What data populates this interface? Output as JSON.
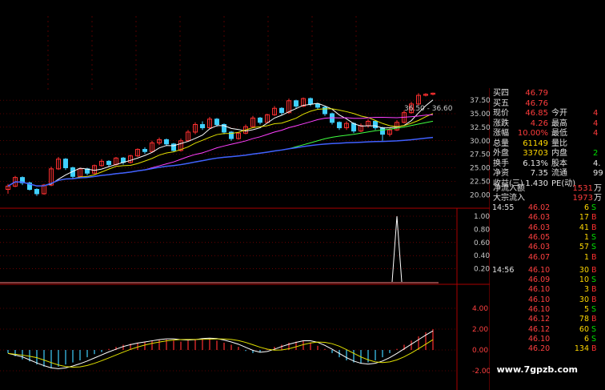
{
  "main_axis_ticks": [
    "37.50",
    "35.00",
    "32.50",
    "30.00",
    "27.50",
    "25.00",
    "22.50",
    "20.00"
  ],
  "sub1_axis_ticks": [
    "1.00",
    "0.80",
    "0.60",
    "0.40",
    "0.20"
  ],
  "sub2_axis_ticks": [
    "4.00",
    "2.00",
    "0.00",
    "-2.00"
  ],
  "price_annotation": "36.50 - 36.60",
  "colors": {
    "up": "#ff3030",
    "down": "#40d0ff",
    "ma5": "#ffffff",
    "ma10": "#e0e000",
    "ma20": "#ff40ff",
    "ma60": "#40ff40",
    "ma120": "#4060ff",
    "grid": "#aa0000"
  },
  "chart_data": {
    "type": "candlestick",
    "y_range_main": [
      19,
      39
    ],
    "candles": [
      [
        21.0,
        21.6,
        20.2,
        22.0
      ],
      [
        21.6,
        23.2,
        21.4,
        23.5
      ],
      [
        23.2,
        22.2,
        21.8,
        23.4
      ],
      [
        22.2,
        21.0,
        20.8,
        22.4
      ],
      [
        21.0,
        20.2,
        19.8,
        21.2
      ],
      [
        20.2,
        21.8,
        20.0,
        22.0
      ],
      [
        21.8,
        24.8,
        21.6,
        25.2
      ],
      [
        24.8,
        26.6,
        24.6,
        27.0
      ],
      [
        26.6,
        25.0,
        24.6,
        26.8
      ],
      [
        25.0,
        23.4,
        23.0,
        25.2
      ],
      [
        23.4,
        24.8,
        23.2,
        25.0
      ],
      [
        24.8,
        24.0,
        23.6,
        25.0
      ],
      [
        24.0,
        25.4,
        23.8,
        25.6
      ],
      [
        25.4,
        26.2,
        25.2,
        26.6
      ],
      [
        26.2,
        25.6,
        25.2,
        26.4
      ],
      [
        25.6,
        26.8,
        25.4,
        27.0
      ],
      [
        26.8,
        26.0,
        25.6,
        27.0
      ],
      [
        26.0,
        27.2,
        25.8,
        27.4
      ],
      [
        27.2,
        28.4,
        27.0,
        28.6
      ],
      [
        28.4,
        28.0,
        27.6,
        28.8
      ],
      [
        28.0,
        29.6,
        27.8,
        30.0
      ],
      [
        29.6,
        30.2,
        29.2,
        30.6
      ],
      [
        30.2,
        29.4,
        29.0,
        30.4
      ],
      [
        29.4,
        28.2,
        28.0,
        29.6
      ],
      [
        28.2,
        30.0,
        28.0,
        30.4
      ],
      [
        30.0,
        31.6,
        29.8,
        32.0
      ],
      [
        31.6,
        33.0,
        31.2,
        33.4
      ],
      [
        33.0,
        32.4,
        32.0,
        33.6
      ],
      [
        32.4,
        34.0,
        32.2,
        34.4
      ],
      [
        34.0,
        33.0,
        32.6,
        34.2
      ],
      [
        33.0,
        31.6,
        31.2,
        33.2
      ],
      [
        31.6,
        30.4,
        30.0,
        31.8
      ],
      [
        30.4,
        31.4,
        30.2,
        31.6
      ],
      [
        31.4,
        32.6,
        31.2,
        33.0
      ],
      [
        32.6,
        34.2,
        32.4,
        34.6
      ],
      [
        34.2,
        33.4,
        33.0,
        34.4
      ],
      [
        33.4,
        34.8,
        33.2,
        35.0
      ],
      [
        34.8,
        36.0,
        34.6,
        36.4
      ],
      [
        36.0,
        35.2,
        34.8,
        36.2
      ],
      [
        35.2,
        37.4,
        35.0,
        37.8
      ],
      [
        37.4,
        36.4,
        36.0,
        37.6
      ],
      [
        36.4,
        37.8,
        36.2,
        38.0
      ],
      [
        37.8,
        36.8,
        36.4,
        38.0
      ],
      [
        36.8,
        36.2,
        35.8,
        37.0
      ],
      [
        36.2,
        35.0,
        34.6,
        36.4
      ],
      [
        35.0,
        33.4,
        33.0,
        35.2
      ],
      [
        33.4,
        32.4,
        32.0,
        33.6
      ],
      [
        32.4,
        33.2,
        32.0,
        33.6
      ],
      [
        33.2,
        31.8,
        31.4,
        33.4
      ],
      [
        31.8,
        32.8,
        31.6,
        33.2
      ],
      [
        32.8,
        33.6,
        32.4,
        34.0
      ],
      [
        33.6,
        32.4,
        32.0,
        33.8
      ],
      [
        32.4,
        31.2,
        30.0,
        32.6
      ],
      [
        31.2,
        32.0,
        30.8,
        32.4
      ],
      [
        32.0,
        33.4,
        31.8,
        33.8
      ],
      [
        33.4,
        35.2,
        33.2,
        35.6
      ],
      [
        35.2,
        36.8,
        35.0,
        37.2
      ],
      [
        36.8,
        38.4,
        36.6,
        38.8
      ],
      [
        38.4,
        38.6,
        38.2,
        38.8
      ],
      [
        38.6,
        38.8,
        38.4,
        38.9
      ]
    ],
    "volume_spike": {
      "index": 54,
      "value": 1.0
    },
    "macd": [
      -0.3,
      -0.6,
      -0.9,
      -1.1,
      -1.4,
      -1.6,
      -1.7,
      -1.6,
      -1.4,
      -1.2,
      -1.0,
      -0.7,
      -0.4,
      -0.2,
      0.1,
      0.3,
      0.5,
      0.6,
      0.7,
      0.8,
      0.9,
      1.0,
      1.0,
      0.9,
      0.8,
      0.9,
      1.0,
      1.1,
      1.0,
      0.9,
      0.7,
      0.5,
      0.3,
      -0.1,
      -0.3,
      -0.2,
      0.1,
      0.3,
      0.5,
      0.7,
      0.8,
      0.9,
      0.7,
      0.4,
      0.1,
      -0.3,
      -0.7,
      -1.0,
      -1.2,
      -1.3,
      -1.2,
      -1.0,
      -0.7,
      -0.3,
      0.1,
      0.5,
      0.9,
      1.3,
      1.7,
      2.0
    ]
  },
  "quote_panel": {
    "rows": [
      {
        "label": "买四",
        "value": "46.79",
        "label2": "",
        "value2": "",
        "v2color": ""
      },
      {
        "label": "买五",
        "value": "46.76",
        "label2": "",
        "value2": "",
        "v2color": ""
      },
      {
        "label": "现价",
        "value": "46.85",
        "label2": "今开",
        "value2": "4",
        "v2color": "red"
      },
      {
        "label": "涨跌",
        "value": "4.26",
        "label2": "最高",
        "value2": "4",
        "v2color": "red"
      },
      {
        "label": "涨幅",
        "value": "10.00%",
        "label2": "最低",
        "value2": "4",
        "v2color": "red"
      },
      {
        "label": "总量",
        "value": "61149",
        "label2": "量比",
        "value2": "",
        "v2color": "red",
        "vcolor": "yel"
      },
      {
        "label": "外盘",
        "value": "33703",
        "label2": "内盘",
        "value2": "2",
        "v2color": "grn",
        "vcolor": "yel"
      },
      {
        "label": "换手",
        "value": "6.13%",
        "label2": "股本",
        "value2": "4.",
        "v2color": "wht",
        "vcolor": "wht"
      },
      {
        "label": "净资",
        "value": "7.35",
        "label2": "流通",
        "value2": "99",
        "v2color": "wht",
        "vcolor": "wht"
      },
      {
        "label": "收益(三)",
        "value": "1.430",
        "label2": "PE(动)",
        "value2": "",
        "v2color": "wht",
        "vcolor": "wht"
      }
    ],
    "net_flow_label": "净流入额",
    "net_flow_value": "1531",
    "net_flow_unit": "万",
    "block_flow_label": "大宗流入",
    "block_flow_value": "1973",
    "block_flow_unit": "万"
  },
  "trades": [
    {
      "time": "14:55",
      "price": "46.02",
      "vol": "6",
      "bs": "S"
    },
    {
      "time": "",
      "price": "46.03",
      "vol": "17",
      "bs": "B"
    },
    {
      "time": "",
      "price": "46.03",
      "vol": "41",
      "bs": "B"
    },
    {
      "time": "",
      "price": "46.05",
      "vol": "1",
      "bs": "S"
    },
    {
      "time": "",
      "price": "46.03",
      "vol": "57",
      "bs": "S"
    },
    {
      "time": "",
      "price": "46.07",
      "vol": "1",
      "bs": "B"
    },
    {
      "time": "14:56",
      "price": "46.10",
      "vol": "30",
      "bs": "B"
    },
    {
      "time": "",
      "price": "46.09",
      "vol": "10",
      "bs": "S"
    },
    {
      "time": "",
      "price": "46.10",
      "vol": "3",
      "bs": "B"
    },
    {
      "time": "",
      "price": "46.10",
      "vol": "30",
      "bs": "B"
    },
    {
      "time": "",
      "price": "46.10",
      "vol": "5",
      "bs": "S"
    },
    {
      "time": "",
      "price": "46.12",
      "vol": "78",
      "bs": "B"
    },
    {
      "time": "",
      "price": "46.12",
      "vol": "60",
      "bs": "S"
    },
    {
      "time": "",
      "price": "46.10",
      "vol": "6",
      "bs": "S"
    },
    {
      "time": "",
      "price": "46.20",
      "vol": "134",
      "bs": "B"
    }
  ],
  "watermark": "www.7gpzb.com"
}
